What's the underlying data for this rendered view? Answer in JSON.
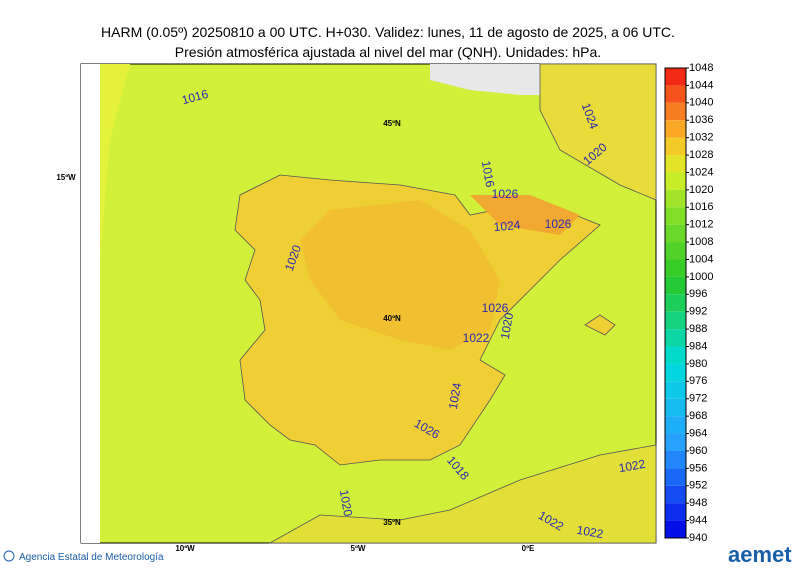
{
  "header": {
    "title": "HARM (0.05º) 20250810 a 00 UTC. H+030. Validez: lunes, 11 de agosto de 2025, a 06 UTC.",
    "subtitle": "Presión atmosférica ajustada al nivel del mar (QNH). Unidades: hPa."
  },
  "map": {
    "contour_labels": [
      "1016",
      "1024",
      "1020",
      "1016",
      "1026",
      "1024",
      "1026",
      "1020",
      "1026",
      "1020",
      "1022",
      "1024",
      "1026",
      "1018",
      "1022",
      "1022",
      "1022",
      "1020"
    ],
    "graticule_labels": [
      "45ºN",
      "40ºN",
      "35ºN",
      "15ºW",
      "10ºW",
      "5ºW",
      "0ºE"
    ]
  },
  "colorbar": {
    "ticks": [
      1048,
      1044,
      1040,
      1036,
      1032,
      1028,
      1024,
      1020,
      1016,
      1012,
      1008,
      1004,
      1000,
      996,
      992,
      988,
      984,
      980,
      976,
      972,
      968,
      964,
      960,
      956,
      952,
      948,
      944,
      940
    ]
  },
  "footer": {
    "agency": "Agencia Estatal de Meteorología",
    "logo": "aemet"
  }
}
